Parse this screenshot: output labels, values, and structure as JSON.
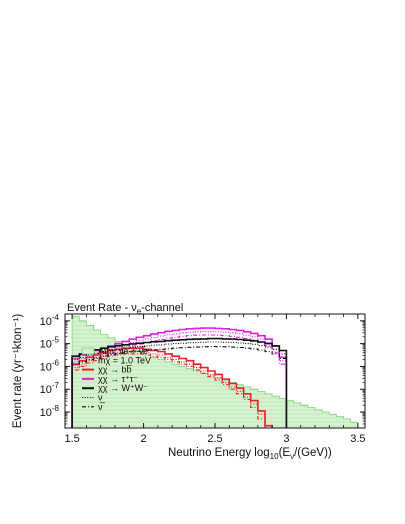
{
  "chart_data": {
    "type": "line",
    "title": "Event Rate - ν",
    "title_sub": "e",
    "title_tail": "-channel",
    "xlabel": "Neutrino Energy log",
    "xlabel_sub": "10",
    "xlabel_mid": "(E",
    "xlabel_sub2": "ν",
    "xlabel_tail": "/(GeV))",
    "ylabel": "Event rate (yr⁻¹kton⁻¹)",
    "xlim": [
      1.45,
      3.55
    ],
    "ylim_log10": [
      -8.7,
      -3.7
    ],
    "log_y": true,
    "x_ticks": [
      {
        "value": 1.5,
        "label": "1.5"
      },
      {
        "value": 2.0,
        "label": "2"
      },
      {
        "value": 2.5,
        "label": "2.5"
      },
      {
        "value": 3.0,
        "label": "3"
      },
      {
        "value": 3.5,
        "label": "3.5"
      }
    ],
    "y_ticks": [
      {
        "exp": -4,
        "base": "10",
        "power": "-4"
      },
      {
        "exp": -5,
        "base": "10",
        "power": "-5"
      },
      {
        "exp": -6,
        "base": "10",
        "power": "-6"
      },
      {
        "exp": -7,
        "base": "10",
        "power": "-7"
      },
      {
        "exp": -8,
        "base": "10",
        "power": "-8"
      }
    ],
    "bin_edges": [
      1.5,
      1.55,
      1.6,
      1.65,
      1.7,
      1.75,
      1.8,
      1.85,
      1.9,
      1.95,
      2.0,
      2.05,
      2.1,
      2.15,
      2.2,
      2.25,
      2.3,
      2.35,
      2.4,
      2.45,
      2.5,
      2.55,
      2.6,
      2.65,
      2.7,
      2.75,
      2.8,
      2.85,
      2.9,
      2.95,
      3.0,
      3.05,
      3.1,
      3.15,
      3.2,
      3.25,
      3.3,
      3.35,
      3.4,
      3.45,
      3.5
    ],
    "series": [
      {
        "key": "atm",
        "color": "#7fd07f",
        "fill": "#d6f2d0",
        "style": "hist-fill",
        "log10_values": [
          -3.8,
          -4.0,
          -4.2,
          -4.4,
          -4.6,
          -4.75,
          -4.9,
          -5.05,
          -5.2,
          -5.35,
          -5.5,
          -5.6,
          -5.7,
          -5.8,
          -5.9,
          -6.0,
          -6.1,
          -6.2,
          -6.3,
          -6.4,
          -6.5,
          -6.6,
          -6.7,
          -6.8,
          -6.9,
          -7.0,
          -7.1,
          -7.2,
          -7.3,
          -7.4,
          -7.5,
          -7.6,
          -7.7,
          -7.8,
          -7.9,
          -8.0,
          -8.1,
          -8.2,
          -8.3,
          -8.45
        ]
      },
      {
        "key": "bb",
        "color": "#e8202a",
        "style": "hist-solid",
        "log10_values": [
          -5.9,
          -5.75,
          -5.6,
          -5.5,
          -5.4,
          -5.3,
          -5.25,
          -5.2,
          -5.2,
          -5.2,
          -5.25,
          -5.3,
          -5.35,
          -5.45,
          -5.55,
          -5.65,
          -5.75,
          -5.9,
          -6.05,
          -6.2,
          -6.35,
          -6.55,
          -6.75,
          -6.95,
          -7.2,
          -7.5,
          -7.95,
          -8.6,
          null,
          null,
          null,
          null,
          null,
          null,
          null,
          null,
          null,
          null,
          null,
          null
        ]
      },
      {
        "key": "bb-nu",
        "color": "#e8202a",
        "style": "hist-dotted",
        "log10_values": [
          -6.05,
          -5.9,
          -5.75,
          -5.65,
          -5.55,
          -5.45,
          -5.4,
          -5.35,
          -5.35,
          -5.35,
          -5.4,
          -5.45,
          -5.5,
          -5.6,
          -5.7,
          -5.8,
          -5.9,
          -6.05,
          -6.2,
          -6.35,
          -6.5,
          -6.7,
          -6.9,
          -7.1,
          -7.35,
          -7.65,
          -8.1,
          null,
          null,
          null,
          null,
          null,
          null,
          null,
          null,
          null,
          null,
          null,
          null,
          null
        ]
      },
      {
        "key": "bb-nubar",
        "color": "#e8202a",
        "style": "hist-dashdot",
        "log10_values": [
          -6.15,
          -6.0,
          -5.85,
          -5.75,
          -5.65,
          -5.55,
          -5.5,
          -5.45,
          -5.45,
          -5.45,
          -5.5,
          -5.55,
          -5.6,
          -5.7,
          -5.8,
          -5.9,
          -6.0,
          -6.15,
          -6.3,
          -6.45,
          -6.6,
          -6.8,
          -7.0,
          -7.2,
          -7.45,
          -7.8,
          -8.3,
          null,
          null,
          null,
          null,
          null,
          null,
          null,
          null,
          null,
          null,
          null,
          null,
          null
        ]
      },
      {
        "key": "tautau",
        "color": "#e020e0",
        "style": "hist-solid",
        "log10_values": [
          -5.65,
          -5.5,
          -5.4,
          -5.3,
          -5.2,
          -5.1,
          -5.0,
          -4.9,
          -4.8,
          -4.72,
          -4.65,
          -4.58,
          -4.52,
          -4.46,
          -4.42,
          -4.38,
          -4.35,
          -4.33,
          -4.32,
          -4.32,
          -4.33,
          -4.35,
          -4.38,
          -4.42,
          -4.48,
          -4.55,
          -4.65,
          -4.8,
          -5.1,
          -5.6,
          null,
          null,
          null,
          null,
          null,
          null,
          null,
          null,
          null,
          null
        ]
      },
      {
        "key": "tautau-nu",
        "color": "#e020e0",
        "style": "hist-dotted",
        "log10_values": [
          -5.8,
          -5.65,
          -5.55,
          -5.45,
          -5.35,
          -5.25,
          -5.15,
          -5.05,
          -4.95,
          -4.87,
          -4.8,
          -4.73,
          -4.67,
          -4.61,
          -4.57,
          -4.53,
          -4.5,
          -4.48,
          -4.47,
          -4.47,
          -4.48,
          -4.5,
          -4.53,
          -4.57,
          -4.63,
          -4.7,
          -4.8,
          -4.95,
          -5.25,
          -5.75,
          null,
          null,
          null,
          null,
          null,
          null,
          null,
          null,
          null,
          null
        ]
      },
      {
        "key": "tautau-nubar",
        "color": "#e020e0",
        "style": "hist-dashdot",
        "log10_values": [
          -5.95,
          -5.8,
          -5.7,
          -5.6,
          -5.5,
          -5.4,
          -5.3,
          -5.2,
          -5.1,
          -5.02,
          -4.95,
          -4.88,
          -4.82,
          -4.76,
          -4.72,
          -4.68,
          -4.65,
          -4.63,
          -4.62,
          -4.62,
          -4.63,
          -4.65,
          -4.68,
          -4.72,
          -4.78,
          -4.85,
          -4.95,
          -5.1,
          -5.4,
          -5.9,
          null,
          null,
          null,
          null,
          null,
          null,
          null,
          null,
          null,
          null
        ]
      },
      {
        "key": "ww",
        "color": "#111111",
        "style": "hist-solid",
        "log10_values": [
          -5.55,
          -5.45,
          -5.35,
          -5.27,
          -5.2,
          -5.14,
          -5.09,
          -5.05,
          -5.01,
          -4.98,
          -4.95,
          -4.92,
          -4.9,
          -4.87,
          -4.85,
          -4.83,
          -4.81,
          -4.8,
          -4.79,
          -4.78,
          -4.78,
          -4.79,
          -4.8,
          -4.82,
          -4.85,
          -4.88,
          -4.93,
          -5.0,
          -5.1,
          -5.3,
          null,
          null,
          null,
          null,
          null,
          null,
          null,
          null,
          null,
          null
        ]
      },
      {
        "key": "ww-nu",
        "color": "#111111",
        "style": "hist-dotted",
        "log10_values": [
          -5.7,
          -5.6,
          -5.5,
          -5.42,
          -5.35,
          -5.29,
          -5.24,
          -5.2,
          -5.16,
          -5.13,
          -5.1,
          -5.07,
          -5.05,
          -5.02,
          -5.0,
          -4.98,
          -4.96,
          -4.95,
          -4.94,
          -4.93,
          -4.93,
          -4.94,
          -4.95,
          -4.97,
          -5.0,
          -5.03,
          -5.08,
          -5.15,
          -5.25,
          -5.45,
          null,
          null,
          null,
          null,
          null,
          null,
          null,
          null,
          null,
          null
        ]
      },
      {
        "key": "ww-nubar",
        "color": "#111111",
        "style": "hist-dashdot",
        "log10_values": [
          -5.9,
          -5.8,
          -5.7,
          -5.62,
          -5.55,
          -5.49,
          -5.44,
          -5.4,
          -5.36,
          -5.33,
          -5.3,
          -5.27,
          -5.25,
          -5.22,
          -5.2,
          -5.18,
          -5.16,
          -5.15,
          -5.14,
          -5.13,
          -5.13,
          -5.14,
          -5.15,
          -5.17,
          -5.2,
          -5.23,
          -5.28,
          -5.35,
          -5.45,
          -5.65,
          null,
          null,
          null,
          null,
          null,
          null,
          null,
          null,
          null,
          null
        ]
      }
    ],
    "legend": {
      "placement": "lower-left",
      "entries": [
        {
          "key": "atm",
          "text": "Atm. νe + ν̅e"
        },
        {
          "key": "mass",
          "text": "mχ = 1.0 TeV"
        },
        {
          "key": "bb",
          "text": "χχ → bb̅"
        },
        {
          "key": "tautau",
          "text": "χχ → τ⁺τ⁻"
        },
        {
          "key": "ww",
          "text": "χχ → W⁺W⁻"
        },
        {
          "key": "nu",
          "text": "ν"
        },
        {
          "key": "nubar",
          "text": "ν̅"
        }
      ]
    }
  }
}
